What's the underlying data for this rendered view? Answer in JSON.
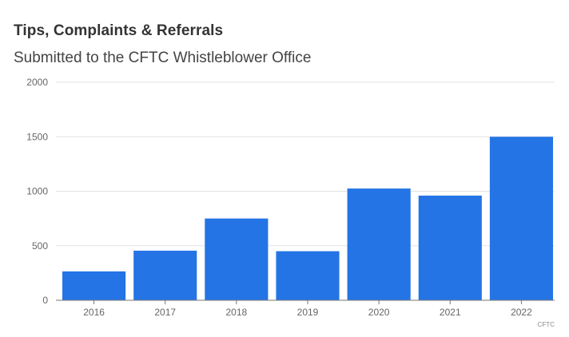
{
  "title": "Tips, Complaints & Referrals",
  "subtitle": "Submitted to the CFTC Whistleblower Office",
  "source": "CFTC",
  "chart_data": {
    "type": "bar",
    "title": "Tips, Complaints & Referrals",
    "subtitle": "Submitted to the CFTC Whistleblower Office",
    "xlabel": "",
    "ylabel": "",
    "categories": [
      "2016",
      "2017",
      "2018",
      "2019",
      "2020",
      "2021",
      "2022"
    ],
    "values": [
      265,
      455,
      750,
      450,
      1025,
      960,
      1500
    ],
    "ylim": [
      0,
      2000
    ],
    "yticks": [
      0,
      500,
      1000,
      1500,
      2000
    ],
    "grid": true,
    "legend": "none",
    "bar_color": "#2474E5"
  }
}
